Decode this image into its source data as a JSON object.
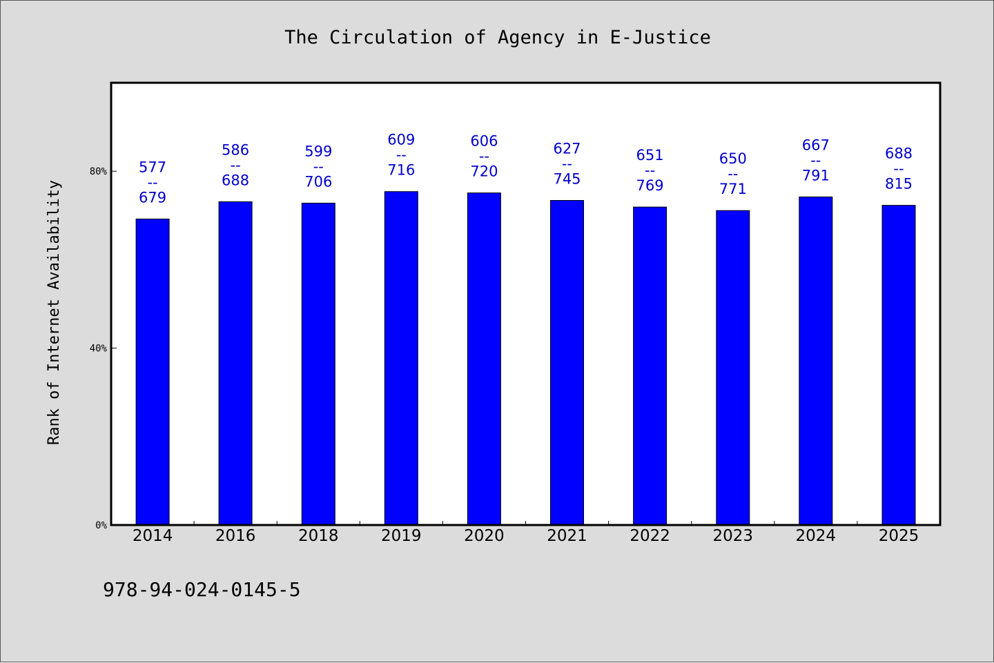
{
  "chart_data": {
    "type": "bar",
    "title": "The Circulation of Agency in E-Justice",
    "xlabel": "",
    "ylabel": "Rank of Internet Availability",
    "categories": [
      "2014",
      "2016",
      "2018",
      "2019",
      "2020",
      "2021",
      "2022",
      "2023",
      "2024",
      "2025"
    ],
    "values": [
      0.692,
      0.731,
      0.728,
      0.754,
      0.751,
      0.734,
      0.719,
      0.711,
      0.742,
      0.723
    ],
    "data_labels": [
      [
        "577",
        "--",
        "679"
      ],
      [
        "586",
        "--",
        "688"
      ],
      [
        "599",
        "--",
        "706"
      ],
      [
        "609",
        "--",
        "716"
      ],
      [
        "606",
        "--",
        "720"
      ],
      [
        "627",
        "--",
        "745"
      ],
      [
        "651",
        "--",
        "769"
      ],
      [
        "650",
        "--",
        "771"
      ],
      [
        "667",
        "--",
        "791"
      ],
      [
        "688",
        "--",
        "815"
      ]
    ],
    "ylim": [
      0,
      1.0
    ],
    "yticks": [
      0,
      0.4,
      0.8
    ],
    "ytick_labels": [
      "0%",
      "40%",
      "80%"
    ],
    "grid": false,
    "legend": "none",
    "colors": {
      "bar": "#0000ff",
      "bar_edge": "#000000",
      "data_label": "#0000cd",
      "plot_background": "#ffffff",
      "figure_background": "#dcdcdc"
    }
  },
  "footer": {
    "isbn": "978-94-024-0145-5"
  }
}
